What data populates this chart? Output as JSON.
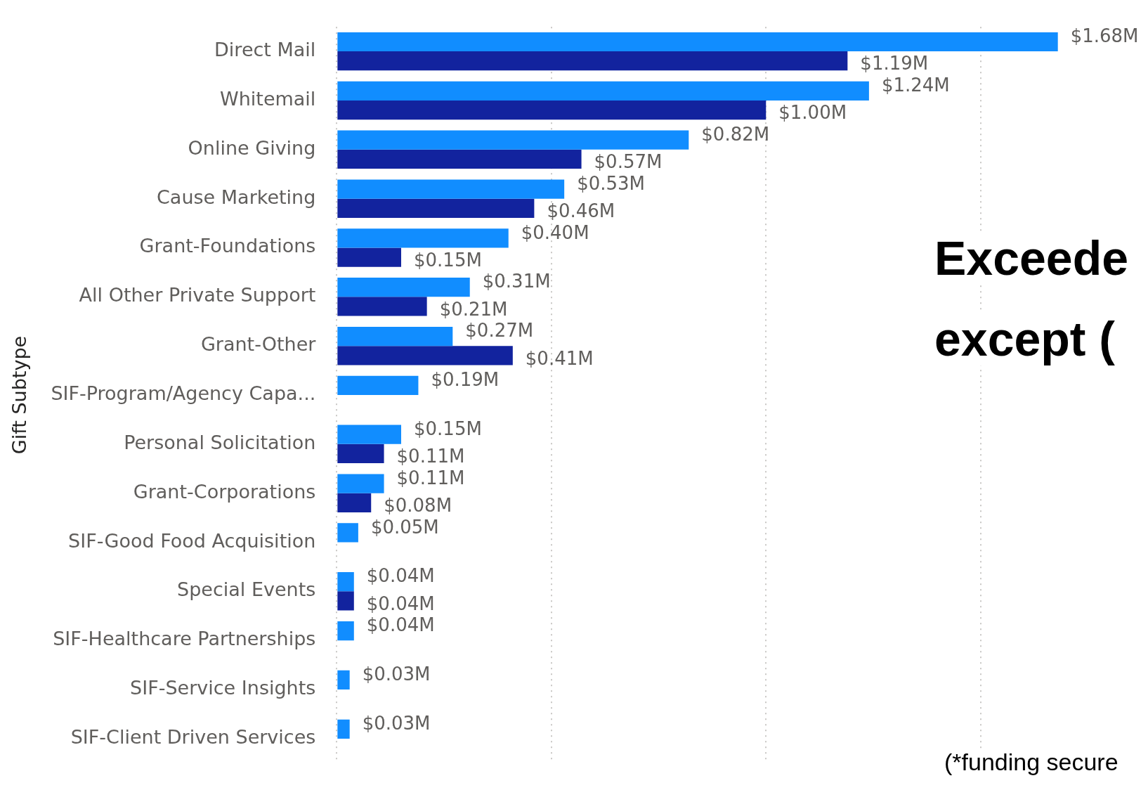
{
  "chart_data": {
    "type": "bar",
    "orientation": "horizontal",
    "ylabel": "Gift Subtype",
    "categories": [
      "Direct Mail",
      "Whitemail",
      "Online Giving",
      "Cause Marketing",
      "Grant-Foundations",
      "All Other Private Support",
      "Grant-Other",
      "SIF-Program/Agency Capa...",
      "Personal Solicitation",
      "Grant-Corporations",
      "SIF-Good Food Acquisition",
      "Special Events",
      "SIF-Healthcare Partnerships",
      "SIF-Service Insights",
      "SIF-Client Driven Services"
    ],
    "series": [
      {
        "color": "#118dff",
        "values": [
          1.68,
          1.24,
          0.82,
          0.53,
          0.4,
          0.31,
          0.27,
          0.19,
          0.15,
          0.11,
          0.05,
          0.04,
          0.04,
          0.03,
          0.03
        ],
        "value_labels": [
          "$1.68M",
          "$1.24M",
          "$0.82M",
          "$0.53M",
          "$0.40M",
          "$0.31M",
          "$0.27M",
          "$0.19M",
          "$0.15M",
          "$0.11M",
          "$0.05M",
          "$0.04M",
          "$0.04M",
          "$0.03M",
          "$0.03M"
        ]
      },
      {
        "color": "#12239e",
        "values": [
          1.19,
          1.0,
          0.57,
          0.46,
          0.15,
          0.21,
          0.41,
          null,
          0.11,
          0.08,
          null,
          0.04,
          null,
          null,
          null
        ],
        "value_labels": [
          "$1.19M",
          "$1.00M",
          "$0.57M",
          "$0.46M",
          "$0.15M",
          "$0.21M",
          "$0.41M",
          null,
          "$0.11M",
          "$0.08M",
          null,
          "$0.04M",
          null,
          null,
          null
        ]
      }
    ],
    "xticks": [
      {
        "value": 0,
        "label": null
      },
      {
        "value": 0.5,
        "label": null
      },
      {
        "value": 1,
        "label": null
      },
      {
        "value": 1.5,
        "label": null
      }
    ],
    "tick_labels": "y",
    "grid": "x",
    "legend": false,
    "annotations": [
      "Exceede",
      "except (",
      "(*funding secure"
    ]
  }
}
